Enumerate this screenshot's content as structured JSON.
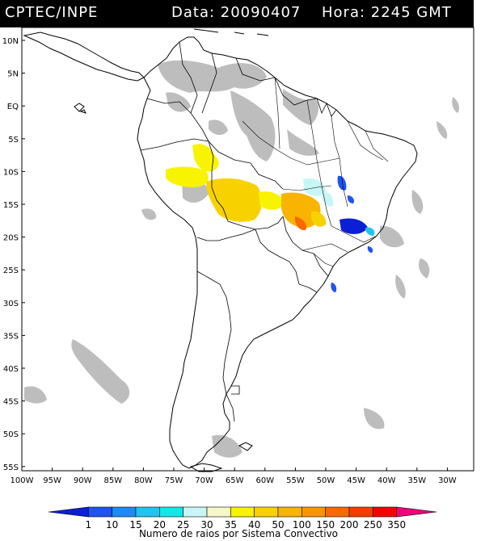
{
  "header": {
    "source": "CPTEC/INPE",
    "date_label": "Data: 20090407",
    "hour_label": "Hora: 2245 GMT"
  },
  "map": {
    "lat_labels": [
      "10N",
      "5N",
      "EQ",
      "5S",
      "10S",
      "15S",
      "20S",
      "25S",
      "30S",
      "35S",
      "40S",
      "45S",
      "50S",
      "55S"
    ],
    "lon_labels": [
      "100W",
      "95W",
      "90W",
      "85W",
      "80W",
      "75W",
      "70W",
      "65W",
      "60W",
      "55W",
      "50W",
      "45W",
      "40W",
      "35W",
      "30W"
    ],
    "colors": {
      "cloud": "#bdbdbd",
      "coast": "#000000"
    }
  },
  "legend": {
    "title": "Numero de raios por Sistema Convectivo",
    "ticks": [
      "1",
      "10",
      "15",
      "20",
      "25",
      "30",
      "35",
      "40",
      "50",
      "100",
      "150",
      "200",
      "250",
      "350"
    ],
    "colors": [
      "#0b1fd6",
      "#1e54f0",
      "#1f8bf2",
      "#20c4f0",
      "#12e8e8",
      "#c8f6f6",
      "#f6f6c8",
      "#f8f400",
      "#f8d200",
      "#f8b400",
      "#f89600",
      "#f86a00",
      "#f83c00",
      "#f80000",
      "#f0007c"
    ]
  }
}
